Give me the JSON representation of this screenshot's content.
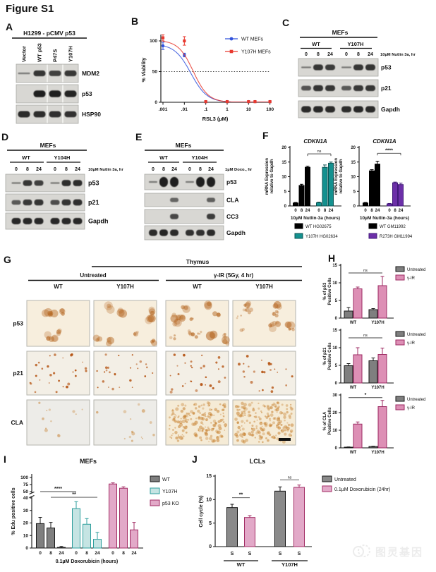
{
  "figure_title": "Figure S1",
  "watermark": {
    "text": "图灵基因"
  },
  "palette": {
    "black": {
      "f": "#000000",
      "s": "#000000"
    },
    "gray": {
      "f": "#7f7f7f",
      "s": "#1a1a1a"
    },
    "grayDark": {
      "f": "#8a8a8a",
      "s": "#111111"
    },
    "teal": {
      "f": "#14918f",
      "s": "#0b5453"
    },
    "tealLight": {
      "f": "#c5e4e3",
      "s": "#2d9e9c"
    },
    "purple": {
      "f": "#6c2fa8",
      "s": "#41197a"
    },
    "pink": {
      "f": "#dd8fb5",
      "s": "#9c2a62"
    },
    "pinkLight": {
      "f": "#e2a9c8",
      "s": "#a22c64"
    },
    "blue": "#3253dc",
    "red": "#e8392f"
  },
  "panels": {
    "A": {
      "label": "A",
      "title": "H1299 - pCMV p53",
      "lanes": [
        "Vector",
        "WT p53",
        "P47S",
        "Y107H"
      ],
      "rows": [
        {
          "name": "MDM2",
          "bands": [
            0.18,
            0.8,
            0.72,
            0.78
          ]
        },
        {
          "name": "p53",
          "bands": [
            0,
            1,
            1,
            0.95
          ]
        },
        {
          "name": "HSP90",
          "bands": [
            0.9,
            0.88,
            0.86,
            0.84
          ]
        }
      ]
    },
    "B": {
      "label": "B"
    },
    "C": {
      "label": "C",
      "title": "MEFs",
      "groups": [
        "WT",
        "Y107H"
      ],
      "timepoints": [
        "0",
        "8",
        "24",
        "0",
        "8",
        "24"
      ],
      "treatment": "10µM Nutlin 3a, hr",
      "rows": [
        {
          "name": "p53",
          "bands": [
            0.15,
            0.8,
            0.75,
            0.12,
            0.8,
            0.82
          ]
        },
        {
          "name": "p21",
          "bands": [
            0.55,
            0.82,
            0.8,
            0.5,
            0.78,
            0.8
          ]
        },
        {
          "name": "Gapdh",
          "bands": [
            0.9,
            0.92,
            0.9,
            0.88,
            0.92,
            0.9
          ]
        }
      ]
    },
    "D": {
      "label": "D",
      "title": "MEFs",
      "groups": [
        "WT",
        "Y104H"
      ],
      "timepoints": [
        "0",
        "8",
        "24",
        "0",
        "8",
        "24"
      ],
      "treatment": "10µM Nutlin 3a, hr",
      "rows": [
        {
          "name": "p53",
          "bands": [
            0.12,
            0.8,
            0.72,
            0.12,
            0.88,
            0.88
          ]
        },
        {
          "name": "p21",
          "bands": [
            0.5,
            0.78,
            0.82,
            0.6,
            0.82,
            0.86
          ]
        },
        {
          "name": "Gapdh",
          "bands": [
            0.92,
            0.92,
            0.92,
            0.92,
            0.92,
            0.92
          ]
        }
      ]
    },
    "E": {
      "label": "E",
      "title": "MEFs",
      "groups": [
        "WT",
        "Y104H"
      ],
      "timepoints": [
        "0",
        "8",
        "24",
        "0",
        "8",
        "24"
      ],
      "treatment": "1µM Doxo., hr",
      "rows": [
        {
          "name": "p53",
          "bands": [
            0.12,
            1,
            1,
            0.08,
            1,
            1
          ],
          "thick": 1.5
        },
        {
          "name": "CLA",
          "bands": [
            0,
            0,
            0.4,
            0,
            0,
            0.45
          ]
        },
        {
          "name": "CC3",
          "bands": [
            0,
            0,
            0.65,
            0,
            0,
            0.75
          ]
        },
        {
          "name": "Gapdh",
          "bands": [
            0.9,
            0.95,
            0.9,
            0.85,
            0.85,
            0.9
          ]
        }
      ]
    },
    "F": {
      "label": "F"
    },
    "G": {
      "label": "G",
      "tissue": "Thymus",
      "conditions": [
        "Untreated",
        "γ-IR (5Gy, 4 hr)"
      ],
      "columns": [
        "WT",
        "Y107H",
        "WT",
        "Y107H"
      ],
      "rows": [
        "p53",
        "p21",
        "CLA"
      ],
      "stains": {
        "p53": {
          "bg": "#f7eedd",
          "color": "#b4651f",
          "blob": true,
          "n": [
            6,
            8,
            14,
            12
          ],
          "r": [
            2,
            6
          ],
          "a": 0.5
        },
        "p21": {
          "bg": "#f3efe6",
          "color": "#b4510f",
          "blob": false,
          "n": [
            28,
            26,
            30,
            24
          ],
          "r": [
            0.8,
            2
          ],
          "a": 0.85
        },
        "CLA": {
          "bg": "#edece8",
          "bgIR": "#f5ebd6",
          "color": "#c57d2a",
          "blob": false,
          "n": [
            12,
            14,
            170,
            190
          ],
          "r": [
            0.8,
            2.6
          ],
          "a": 0.5
        }
      }
    },
    "H": {
      "label": "H"
    },
    "I": {
      "label": "I"
    },
    "J": {
      "label": "J"
    }
  },
  "chart_data": [
    {
      "id": "B",
      "type": "line",
      "title": "",
      "xlabel": "RSL3 (µM)",
      "ylabel": "% Viability",
      "x_scale": "log",
      "x_ticks": [
        ".001",
        ".01",
        ".1",
        "1",
        "10",
        "100"
      ],
      "ylim": [
        0,
        110
      ],
      "y_ticks": [
        0,
        50,
        100
      ],
      "ref_line": 50,
      "legend_position": "top-right",
      "series": [
        {
          "name": "WT MEFs",
          "color": "#3253dc",
          "marker": "circle",
          "x": [
            0.001,
            0.01,
            0.1,
            1,
            10,
            20,
            100
          ],
          "y": [
            92,
            77,
            1,
            1,
            1,
            1,
            1
          ],
          "err": [
            6,
            3,
            1,
            1,
            1,
            1,
            1
          ],
          "ec50": 0.02,
          "top": 95,
          "hill": 1.15
        },
        {
          "name": "Y107H MEFs",
          "color": "#e8392f",
          "marker": "square",
          "x": [
            0.001,
            0.01,
            0.1,
            1,
            10,
            20,
            100
          ],
          "y": [
            105,
            100,
            1,
            1,
            1,
            1,
            1
          ],
          "err": [
            5,
            7,
            1,
            1,
            1,
            1,
            1
          ],
          "ec50": 0.026,
          "top": 101,
          "hill": 1.25
        }
      ]
    },
    {
      "id": "F1",
      "type": "bar",
      "title": "CDKN1A",
      "ylabel": [
        "mRNA Expression",
        "relative to Gapdh"
      ],
      "xlabel": "10µM Nutlin-3a (hours)",
      "ylim": [
        0,
        20
      ],
      "y_ticks": [
        0,
        5,
        10,
        15,
        20
      ],
      "categories": [
        "0",
        "8",
        "24",
        "0",
        "8",
        "24"
      ],
      "bars": [
        {
          "v": 1.0,
          "e": 0.2,
          "c": "black"
        },
        {
          "v": 7.0,
          "e": 0.4,
          "c": "black"
        },
        {
          "v": 13.2,
          "e": 0.4,
          "c": "black"
        },
        {
          "v": 1.1,
          "e": 0.2,
          "c": "teal"
        },
        {
          "v": 13.2,
          "e": 0.8,
          "c": "teal"
        },
        {
          "v": 14.6,
          "e": 0.4,
          "c": "teal"
        }
      ],
      "sig": [
        {
          "label": "ns",
          "a": 2,
          "b": 5,
          "y": 17.8
        }
      ],
      "legend": [
        {
          "label": "WT HG02675",
          "c": "black"
        },
        {
          "label": "Y107H HG02634",
          "c": "teal"
        }
      ]
    },
    {
      "id": "F2",
      "type": "bar",
      "title": "CDKN1A",
      "ylabel": [
        "mRNA Expression",
        "relative to Gapdh"
      ],
      "xlabel": "10µM Nutlin-3a (hours)",
      "ylim": [
        0,
        20
      ],
      "y_ticks": [
        0,
        5,
        10,
        15,
        20
      ],
      "categories": [
        "0",
        "8",
        "24",
        "0",
        "8",
        "24"
      ],
      "bars": [
        {
          "v": 1.0,
          "e": 0.2,
          "c": "black"
        },
        {
          "v": 12.0,
          "e": 0.4,
          "c": "black"
        },
        {
          "v": 14.3,
          "e": 1.0,
          "c": "black"
        },
        {
          "v": 0.7,
          "e": 0.15,
          "c": "purple"
        },
        {
          "v": 7.9,
          "e": 0.25,
          "c": "purple"
        },
        {
          "v": 7.3,
          "e": 0.5,
          "c": "purple"
        }
      ],
      "sig": [
        {
          "label": "****",
          "a": 2,
          "b": 5,
          "y": 18
        }
      ],
      "legend": [
        {
          "label": "WT GM11992",
          "c": "black"
        },
        {
          "label": "R273H GM11994",
          "c": "purple"
        }
      ]
    },
    {
      "id": "H1",
      "type": "bar",
      "ylabel": [
        "% of p53",
        "Positive Cells"
      ],
      "ylim": [
        0,
        15
      ],
      "y_ticks": [
        0,
        5,
        10,
        15
      ],
      "categories": [
        "WT",
        "Y107H"
      ],
      "bars": [
        {
          "v": 2.0,
          "e": 1.0,
          "c": "gray"
        },
        {
          "v": 8.3,
          "e": 0.5,
          "c": "pink"
        },
        {
          "v": 2.4,
          "e": 0.3,
          "c": "gray"
        },
        {
          "v": 9.2,
          "e": 2.6,
          "c": "pink"
        }
      ],
      "sig": [
        {
          "label": "ns",
          "a": 0,
          "b": 3,
          "y": 12.8
        }
      ],
      "legend": [
        {
          "label": "Untreated",
          "c": "gray"
        },
        {
          "label": "γ-IR",
          "c": "pink"
        }
      ]
    },
    {
      "id": "H2",
      "type": "bar",
      "ylabel": [
        "% of p21",
        "Positive Cells"
      ],
      "ylim": [
        0,
        15
      ],
      "y_ticks": [
        0,
        5,
        10,
        15
      ],
      "categories": [
        "WT",
        "Y107H"
      ],
      "bars": [
        {
          "v": 4.9,
          "e": 0.6,
          "c": "gray"
        },
        {
          "v": 8.0,
          "e": 2.0,
          "c": "pink"
        },
        {
          "v": 6.3,
          "e": 0.8,
          "c": "gray"
        },
        {
          "v": 8.1,
          "e": 1.8,
          "c": "pink"
        }
      ],
      "sig": [
        {
          "label": "ns",
          "a": 0,
          "b": 3,
          "y": 12.8
        }
      ],
      "legend": [
        {
          "label": "Untreated",
          "c": "gray"
        },
        {
          "label": "γ-IR",
          "c": "pink"
        }
      ]
    },
    {
      "id": "H3",
      "type": "bar",
      "ylabel": [
        "% of CLA",
        "Positive Cells"
      ],
      "ylim": [
        0,
        30
      ],
      "y_ticks": [
        0,
        10,
        20,
        30
      ],
      "categories": [
        "WT",
        "Y107H"
      ],
      "bars": [
        {
          "v": 0.4,
          "e": 0.15,
          "c": "gray"
        },
        {
          "v": 13.5,
          "e": 1.2,
          "c": "pink"
        },
        {
          "v": 0.8,
          "e": 0.2,
          "c": "gray"
        },
        {
          "v": 23.4,
          "e": 3.5,
          "c": "pink"
        }
      ],
      "sig": [
        {
          "label": "*",
          "a": 0,
          "b": 3,
          "y": 28.5
        }
      ],
      "legend": [
        {
          "label": "Untreated",
          "c": "gray"
        },
        {
          "label": "γ-IR",
          "c": "pink"
        }
      ]
    },
    {
      "id": "I",
      "type": "bar-broken",
      "title": "MEFs",
      "ylabel": "% Edu positive cells",
      "xlabel": "0.1µM Doxorubicin (hours)",
      "ylim_low": [
        0,
        40
      ],
      "y_ticks_low": [
        0,
        10,
        20,
        30,
        40
      ],
      "ylim_high": [
        50,
        100
      ],
      "y_ticks_high": [
        50,
        75,
        100
      ],
      "categories": [
        "0",
        "8",
        "24",
        "0",
        "8",
        "24",
        "0",
        "8",
        "24"
      ],
      "bars": [
        {
          "v": 19.5,
          "e": 5,
          "c": "gray"
        },
        {
          "v": 16,
          "e": 4.5,
          "c": "gray"
        },
        {
          "v": 0.5,
          "e": 0.8,
          "c": "gray"
        },
        {
          "v": 31.5,
          "e": 5.5,
          "c": "tealLight"
        },
        {
          "v": 19,
          "e": 4.5,
          "c": "tealLight"
        },
        {
          "v": 7,
          "e": 5.5,
          "c": "tealLight"
        },
        {
          "v": 77,
          "e": 4,
          "c": "pinkLight"
        },
        {
          "v": 62,
          "e": 5,
          "c": "pinkLight"
        },
        {
          "v": 14.5,
          "e": 6,
          "c": "pinkLight"
        }
      ],
      "sig": [
        {
          "label": "****",
          "a": 0,
          "b": 3,
          "y": 50
        },
        {
          "label": "**",
          "a": 1,
          "b": 5,
          "y": 41
        }
      ],
      "legend": [
        {
          "label": "WT",
          "c": "gray"
        },
        {
          "label": "Y107H",
          "c": "tealLight"
        },
        {
          "label": "p53 KO",
          "c": "pinkLight"
        }
      ]
    },
    {
      "id": "J",
      "type": "bar",
      "title": "LCLs",
      "ylabel": "Cell cycle (%)",
      "ylim": [
        0,
        15
      ],
      "y_ticks": [
        0,
        5,
        10,
        15
      ],
      "categories": [
        "S",
        "S",
        "S",
        "S"
      ],
      "group_labels": [
        "WT",
        "Y107H"
      ],
      "bars": [
        {
          "v": 8.3,
          "e": 0.7,
          "c": "grayDark"
        },
        {
          "v": 6.2,
          "e": 0.4,
          "c": "pinkLight"
        },
        {
          "v": 11.8,
          "e": 0.9,
          "c": "grayDark"
        },
        {
          "v": 12.6,
          "e": 0.5,
          "c": "pinkLight"
        }
      ],
      "sig": [
        {
          "label": "**",
          "a": 0,
          "b": 1,
          "y": 10.4
        },
        {
          "label": "ns",
          "a": 2,
          "b": 3,
          "y": 14.2
        }
      ],
      "legend": [
        {
          "label": "Untreated",
          "c": "grayDark"
        },
        {
          "label": "0.1µM Doxorubicin (24hr)",
          "c": "pinkLight"
        }
      ]
    }
  ]
}
